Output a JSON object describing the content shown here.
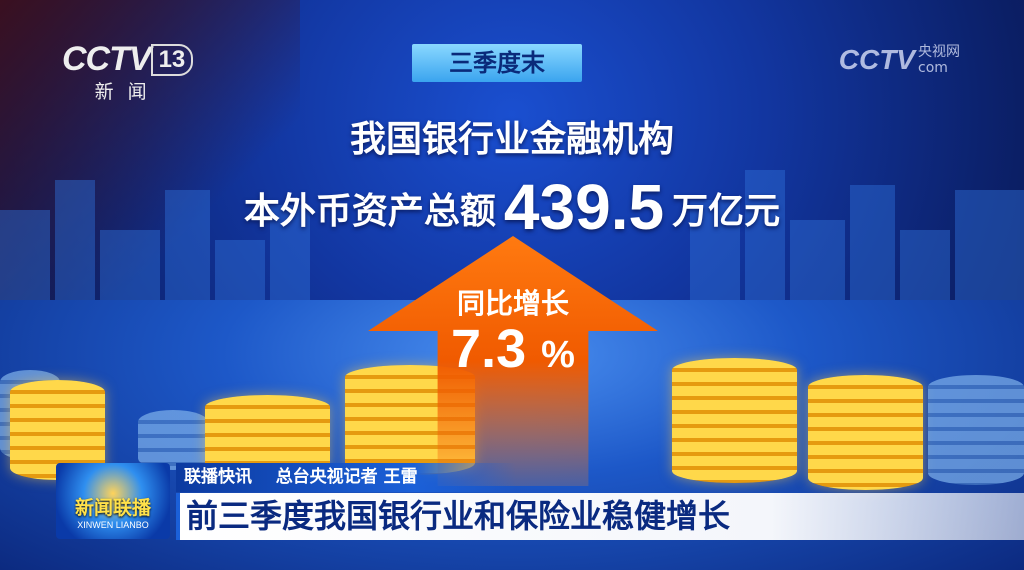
{
  "channel_logo": {
    "brand": "CCTV",
    "channel": "13",
    "name": "新闻"
  },
  "watermark": {
    "brand": "CCTV",
    "name": "央视网",
    "suffix": "com"
  },
  "infographic": {
    "tag": "三季度末",
    "line1": "我国银行业金融机构",
    "line2_prefix": "本外币资产总额",
    "value": "439.5",
    "unit": "万亿元",
    "growth_label": "同比增长",
    "growth_value": "7.3",
    "growth_unit": "%"
  },
  "lower_third": {
    "program_logo": "新闻联播",
    "program_logo_en": "XINWEN LIANBO",
    "segment": "联播快讯",
    "reporter": "总台央视记者 王雷",
    "headline": "前三季度我国银行业和保险业稳健增长"
  },
  "colors": {
    "accent_orange": "#f05a00",
    "headline_blue": "#0a2a80",
    "coin_gold": "#ffd84a"
  }
}
